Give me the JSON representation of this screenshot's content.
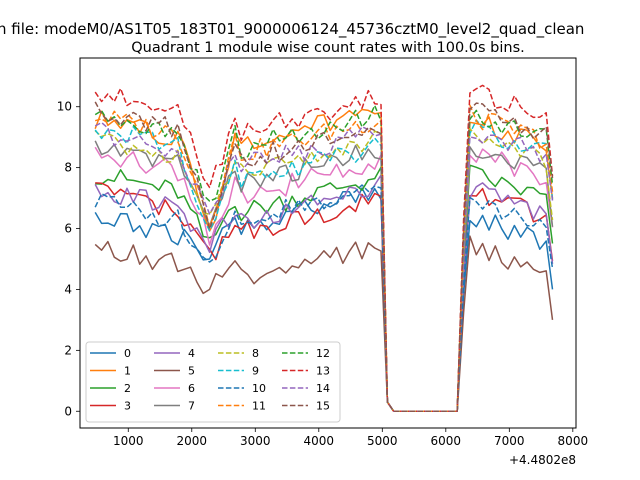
{
  "chart_data": {
    "type": "line",
    "suptitle": "n file: modeM0/AS1T05_183T01_9000006124_45736cztM0_level2_quad_clean",
    "title": "Quadrant 1 module wise count rates with 100.0s bins.",
    "xlabel": "",
    "ylabel": "",
    "x_offset_label": "+4.4802e8",
    "xlim": [
      240,
      8050
    ],
    "ylim": [
      -0.55,
      11.6
    ],
    "xticks": [
      1000,
      2000,
      3000,
      4000,
      5000,
      6000,
      7000,
      8000
    ],
    "yticks": [
      0,
      2,
      4,
      6,
      8,
      10
    ],
    "grid": false,
    "legend_position": "lower-left",
    "legend_columns": 4,
    "x": [
      480,
      580,
      680,
      780,
      880,
      980,
      1080,
      1180,
      1280,
      1380,
      1480,
      1580,
      1680,
      1780,
      1880,
      1980,
      2080,
      2180,
      2280,
      2380,
      2480,
      2580,
      2680,
      2780,
      2880,
      2980,
      3080,
      3180,
      3280,
      3380,
      3480,
      3580,
      3680,
      3780,
      3880,
      3980,
      4080,
      4180,
      4280,
      4380,
      4480,
      4580,
      4680,
      4780,
      4880,
      4980,
      5080,
      5180,
      5280,
      5380,
      5480,
      5580,
      5680,
      5780,
      5880,
      5980,
      6080,
      6180,
      6280,
      6380,
      6480,
      6580,
      6680,
      6780,
      6880,
      6980,
      7080,
      7180,
      7280,
      7380,
      7480,
      7580,
      7680
    ],
    "gap": [
      5180,
      6180
    ],
    "series": [
      {
        "name": "0",
        "color": "#1f77b4",
        "style": "solid",
        "level": 6.4,
        "lp": 4.9,
        "hp": 6.8,
        "phase": 0.3
      },
      {
        "name": "1",
        "color": "#ff7f0e",
        "style": "solid",
        "level": 9.6,
        "lp": 5.8,
        "hp": 9.5,
        "phase": 1.1
      },
      {
        "name": "2",
        "color": "#2ca02c",
        "style": "solid",
        "level": 7.8,
        "lp": 5.4,
        "hp": 7.3,
        "phase": 2.0
      },
      {
        "name": "3",
        "color": "#d62728",
        "style": "solid",
        "level": 7.2,
        "lp": 5.0,
        "hp": 6.6,
        "phase": 2.7
      },
      {
        "name": "4",
        "color": "#9467bd",
        "style": "solid",
        "level": 7.3,
        "lp": 5.4,
        "hp": 7.0,
        "phase": 3.4
      },
      {
        "name": "5",
        "color": "#8c564b",
        "style": "solid",
        "level": 5.4,
        "lp": 4.0,
        "hp": 5.1,
        "phase": 4.1
      },
      {
        "name": "6",
        "color": "#e377c2",
        "style": "solid",
        "level": 8.5,
        "lp": 5.6,
        "hp": 7.8,
        "phase": 4.8
      },
      {
        "name": "7",
        "color": "#7f7f7f",
        "style": "solid",
        "level": 8.7,
        "lp": 6.0,
        "hp": 8.2,
        "phase": 5.5
      },
      {
        "name": "8",
        "color": "#bcbd22",
        "style": "dashed",
        "level": 9.0,
        "lp": 6.2,
        "hp": 8.6,
        "phase": 0.7
      },
      {
        "name": "9",
        "color": "#17becf",
        "style": "dashed",
        "level": 9.3,
        "lp": 5.9,
        "hp": 8.3,
        "phase": 1.5
      },
      {
        "name": "10",
        "color": "#1f77b4",
        "style": "dashed",
        "level": 6.9,
        "lp": 4.6,
        "hp": 7.0,
        "phase": 2.3
      },
      {
        "name": "11",
        "color": "#ff7f0e",
        "style": "dashed",
        "level": 9.7,
        "lp": 6.3,
        "hp": 9.2,
        "phase": 3.0
      },
      {
        "name": "12",
        "color": "#2ca02c",
        "style": "dashed",
        "level": 9.8,
        "lp": 6.6,
        "hp": 9.4,
        "phase": 3.8
      },
      {
        "name": "13",
        "color": "#d62728",
        "style": "dashed",
        "level": 10.5,
        "lp": 7.2,
        "hp": 9.9,
        "phase": 4.5
      },
      {
        "name": "14",
        "color": "#9467bd",
        "style": "dashed",
        "level": 9.2,
        "lp": 6.4,
        "hp": 8.8,
        "phase": 5.2
      },
      {
        "name": "15",
        "color": "#8c564b",
        "style": "dashed",
        "level": 9.9,
        "lp": 6.0,
        "hp": 9.0,
        "phase": 5.9
      }
    ]
  }
}
